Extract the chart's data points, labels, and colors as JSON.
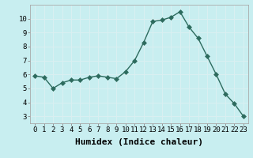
{
  "x": [
    0,
    1,
    2,
    3,
    4,
    5,
    6,
    7,
    8,
    9,
    10,
    11,
    12,
    13,
    14,
    15,
    16,
    17,
    18,
    19,
    20,
    21,
    22,
    23
  ],
  "y": [
    5.9,
    5.8,
    5.0,
    5.4,
    5.6,
    5.6,
    5.8,
    5.9,
    5.8,
    5.7,
    6.2,
    7.0,
    8.3,
    9.8,
    9.9,
    10.1,
    10.5,
    9.4,
    8.6,
    7.3,
    6.0,
    4.6,
    3.9,
    3.0
  ],
  "line_color": "#2d6b5e",
  "bg_color": "#c8eef0",
  "grid_color": "#e8f8fa",
  "xlabel": "Humidex (Indice chaleur)",
  "xlim": [
    -0.5,
    23.5
  ],
  "ylim": [
    2.5,
    11.0
  ],
  "yticks": [
    3,
    4,
    5,
    6,
    7,
    8,
    9,
    10
  ],
  "xticks": [
    0,
    1,
    2,
    3,
    4,
    5,
    6,
    7,
    8,
    9,
    10,
    11,
    12,
    13,
    14,
    15,
    16,
    17,
    18,
    19,
    20,
    21,
    22,
    23
  ],
  "markersize": 3.0,
  "linewidth": 1.0,
  "xlabel_fontsize": 8,
  "tick_fontsize": 6.5
}
